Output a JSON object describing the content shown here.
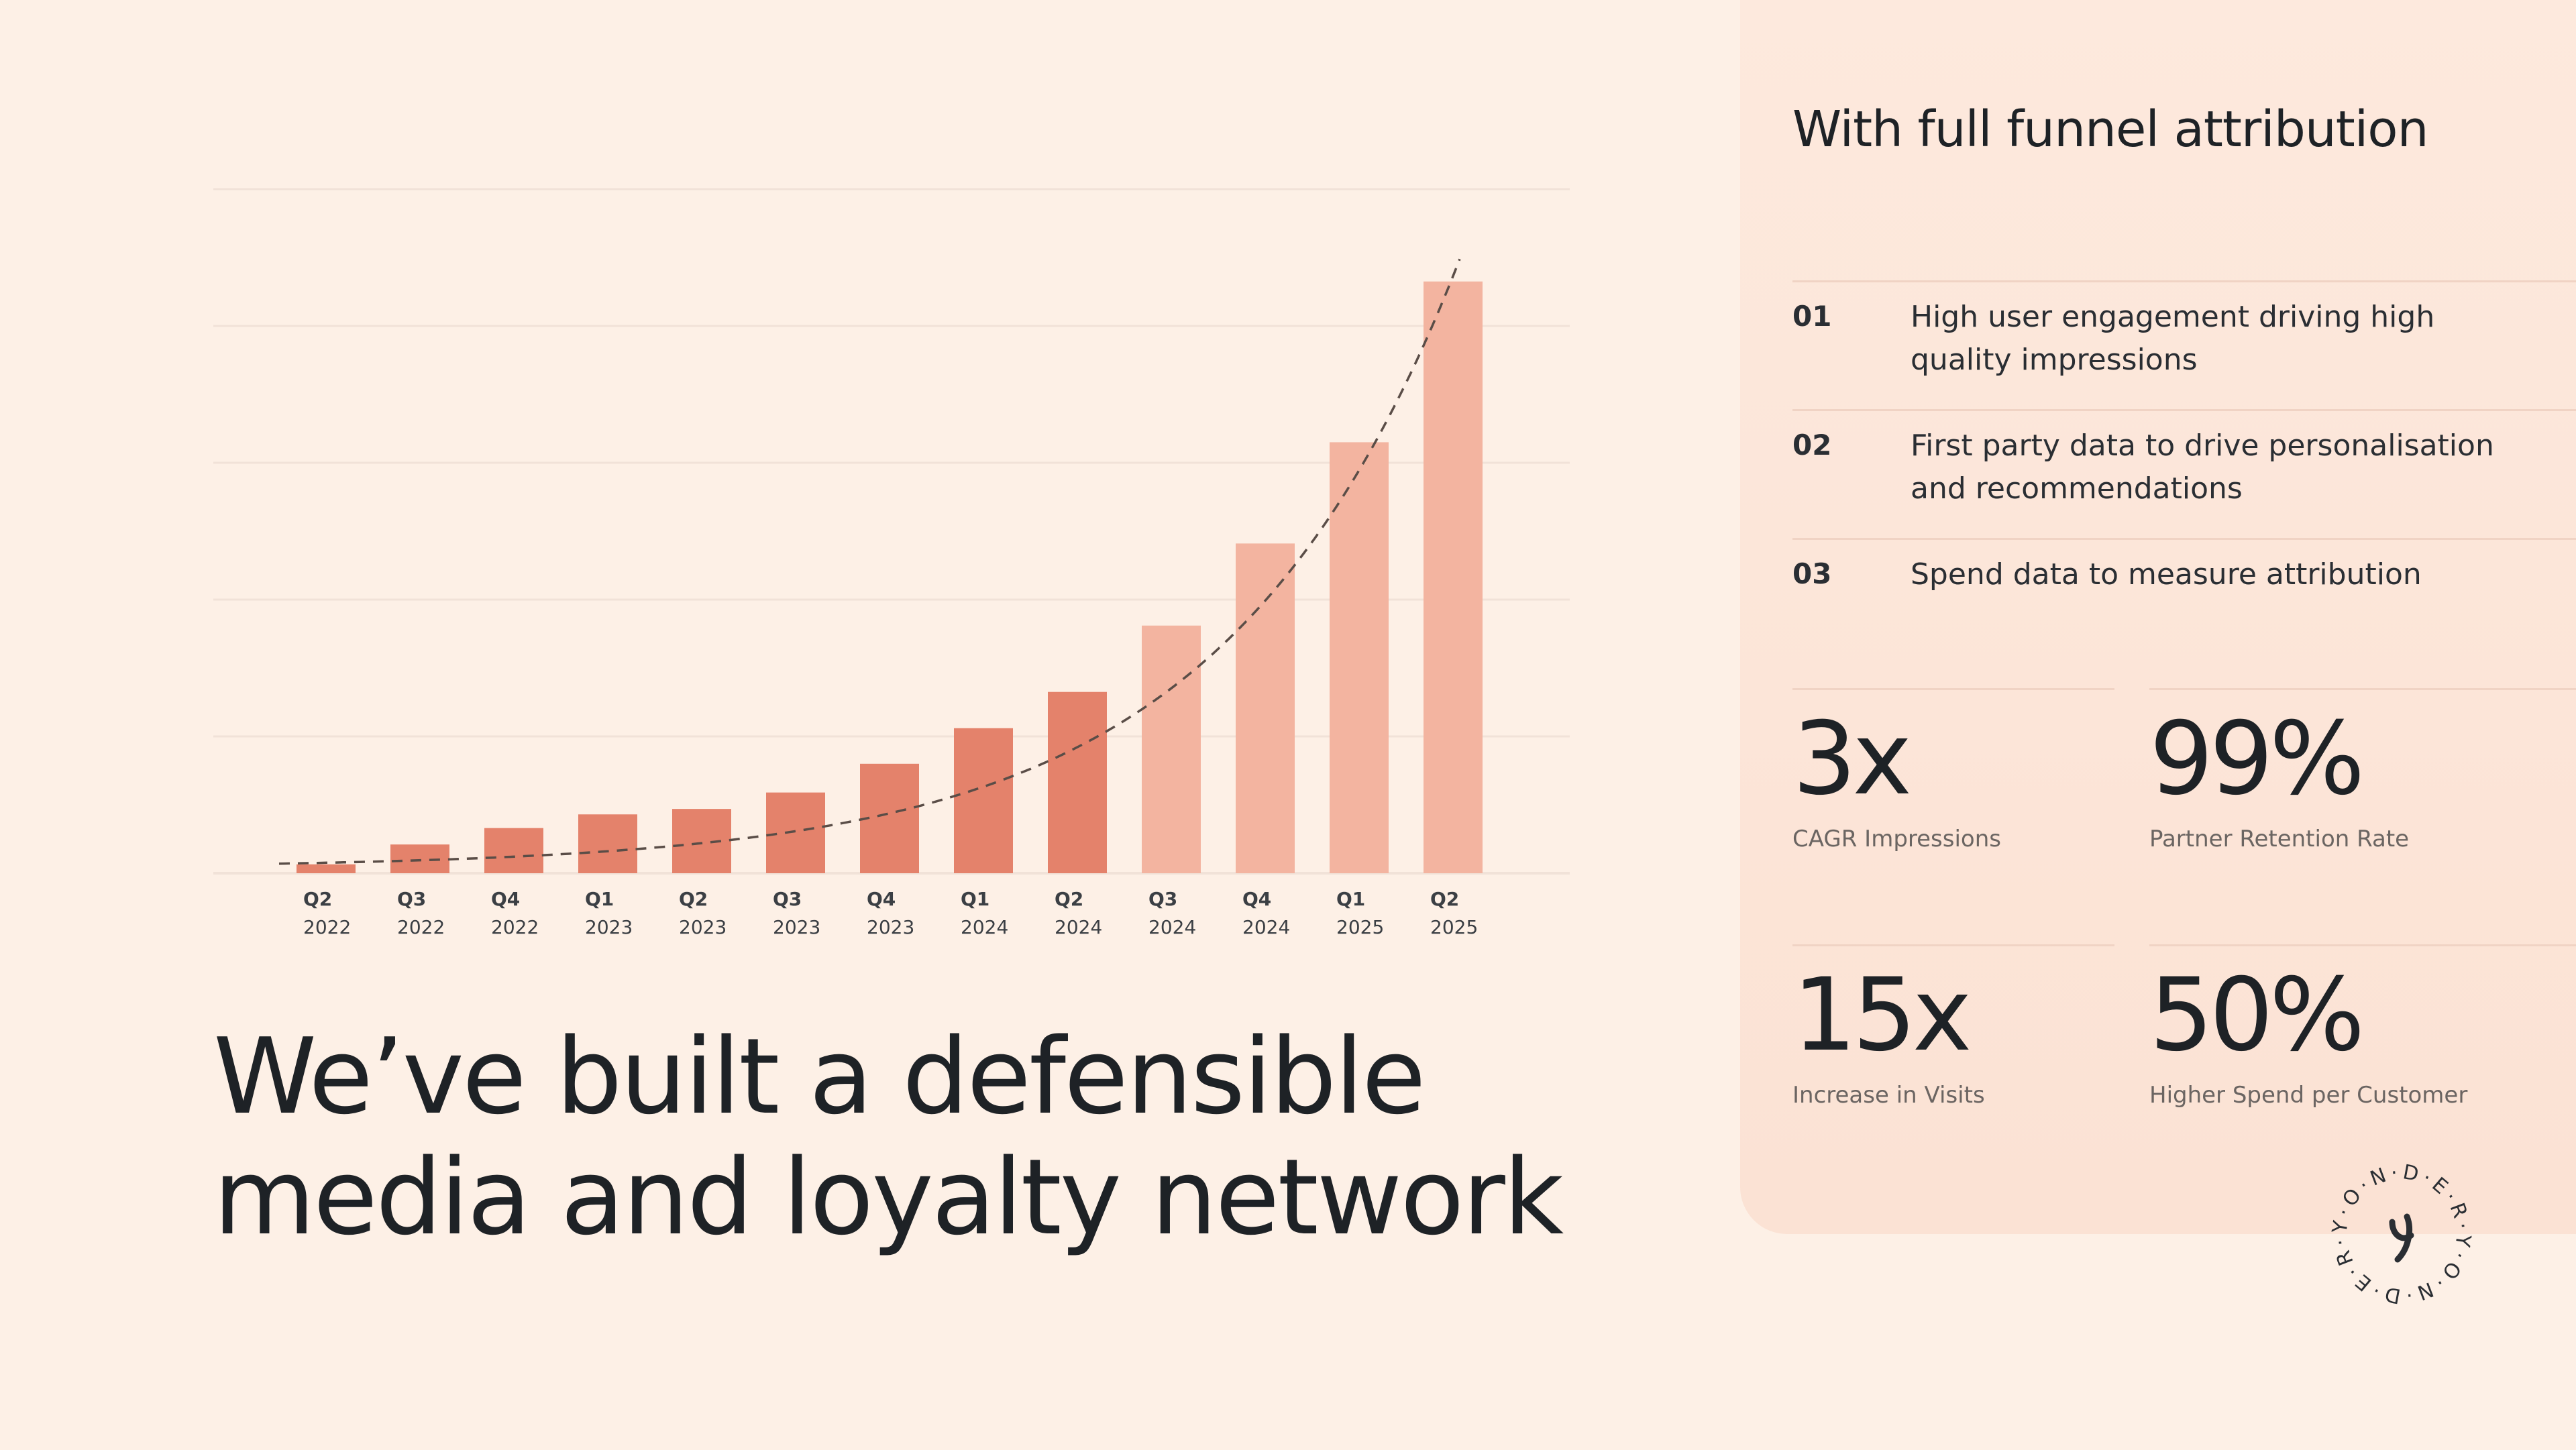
{
  "chart_data": {
    "type": "bar",
    "categories": [
      [
        "Q2",
        "2022"
      ],
      [
        "Q3",
        "2022"
      ],
      [
        "Q4",
        "2022"
      ],
      [
        "Q1",
        "2023"
      ],
      [
        "Q2",
        "2023"
      ],
      [
        "Q3",
        "2023"
      ],
      [
        "Q4",
        "2023"
      ],
      [
        "Q1",
        "2024"
      ],
      [
        "Q2",
        "2024"
      ],
      [
        "Q3",
        "2024"
      ],
      [
        "Q4",
        "2024"
      ],
      [
        "Q1",
        "2025"
      ],
      [
        "Q2",
        "2025"
      ]
    ],
    "values": [
      1.3,
      4.2,
      6.6,
      8.6,
      9.4,
      11.8,
      16.0,
      21.2,
      26.5,
      36.2,
      48.2,
      63.0,
      86.5
    ],
    "ylim": [
      0,
      100
    ],
    "gridlines": [
      0,
      20,
      40,
      60,
      80,
      100
    ],
    "grid": true,
    "legend": "none",
    "trendline": "dashed exponential curve",
    "colors": {
      "actual": "#e4826b",
      "projected": "#f3b4a0",
      "grid": "#f1e2d8",
      "trend": "#5a4d47"
    },
    "projected_from_index": 9
  },
  "headline": {
    "line1": "We’ve built a defensible",
    "line2": "media and loyalty network"
  },
  "panel": {
    "title": "With full funnel attribution",
    "features": [
      {
        "num": "01",
        "text": "High user engagement driving high quality impressions"
      },
      {
        "num": "02",
        "text": "First party data to drive personalisation and recommendations"
      },
      {
        "num": "03",
        "text": "Spend data to measure attribution"
      }
    ],
    "stats": [
      {
        "value": "3x",
        "label": "CAGR Impressions"
      },
      {
        "value": "99%",
        "label": "Partner Retention Rate"
      },
      {
        "value": "15x",
        "label": "Increase in Visits"
      },
      {
        "value": "50%",
        "label": "Higher Spend per Customer"
      }
    ]
  },
  "logo": {
    "text": "Y·O·N·D·E·R·Y·O·N·D·E·R·",
    "colors": {
      "ink": "#2a2e33"
    }
  }
}
